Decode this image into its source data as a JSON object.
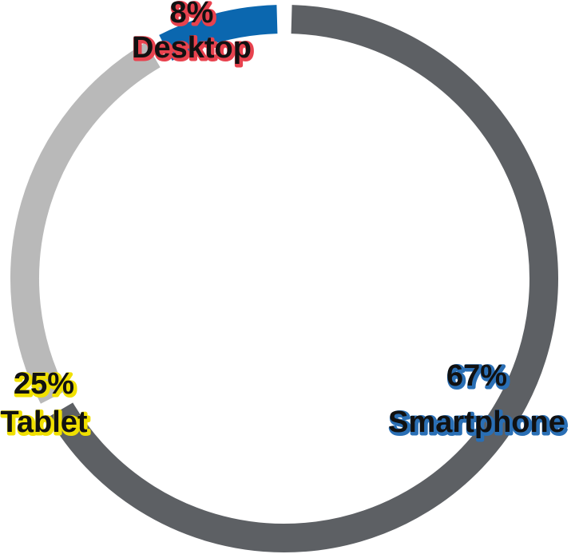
{
  "chart_data": {
    "type": "pie",
    "style": "donut",
    "slices": [
      {
        "label": "Smartphone",
        "value": 67,
        "value_label": "67%",
        "color": "#5d6064",
        "label_outline": "#2a6fb5"
      },
      {
        "label": "Tablet",
        "value": 25,
        "value_label": "25%",
        "color": "#b9b9b9",
        "label_outline": "#f0e000"
      },
      {
        "label": "Desktop",
        "value": 8,
        "value_label": "8%",
        "color": "#0b67af",
        "label_outline": "#e8424e"
      }
    ],
    "start_angle_deg": 0,
    "direction": "clockwise",
    "legend": "none",
    "background": "#ffffff"
  }
}
